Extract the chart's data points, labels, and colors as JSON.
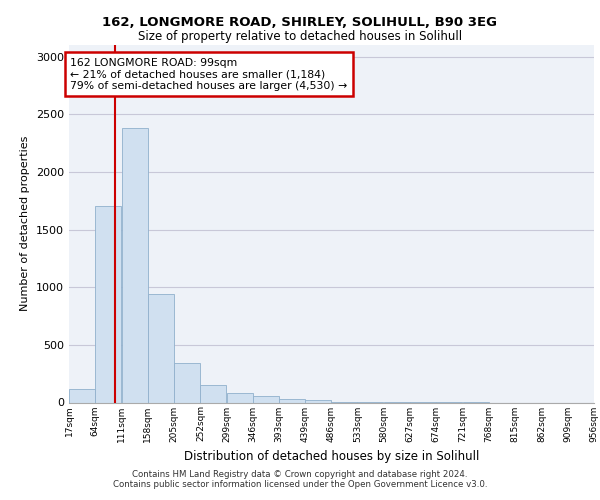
{
  "title_line1": "162, LONGMORE ROAD, SHIRLEY, SOLIHULL, B90 3EG",
  "title_line2": "Size of property relative to detached houses in Solihull",
  "xlabel": "Distribution of detached houses by size in Solihull",
  "ylabel": "Number of detached properties",
  "footer_line1": "Contains HM Land Registry data © Crown copyright and database right 2024.",
  "footer_line2": "Contains public sector information licensed under the Open Government Licence v3.0.",
  "bar_color": "#d0e0f0",
  "bar_edge_color": "#90b0cc",
  "grid_color": "#c8c8d8",
  "bg_color": "#eef2f8",
  "annotation_box_color": "#cc0000",
  "annotation_line_color": "#cc0000",
  "property_size": 99,
  "annotation_text_line1": "162 LONGMORE ROAD: 99sqm",
  "annotation_text_line2": "← 21% of detached houses are smaller (1,184)",
  "annotation_text_line3": "79% of semi-detached houses are larger (4,530) →",
  "bins": [
    17,
    64,
    111,
    158,
    205,
    252,
    299,
    346,
    393,
    439,
    486,
    533,
    580,
    627,
    674,
    721,
    768,
    815,
    862,
    909,
    956
  ],
  "bar_heights": [
    120,
    1700,
    2380,
    940,
    340,
    150,
    80,
    55,
    30,
    20,
    8,
    5,
    2,
    2,
    1,
    1,
    0,
    0,
    0,
    0
  ],
  "ylim": [
    0,
    3100
  ],
  "yticks": [
    0,
    500,
    1000,
    1500,
    2000,
    2500,
    3000
  ],
  "vline_x": 99
}
